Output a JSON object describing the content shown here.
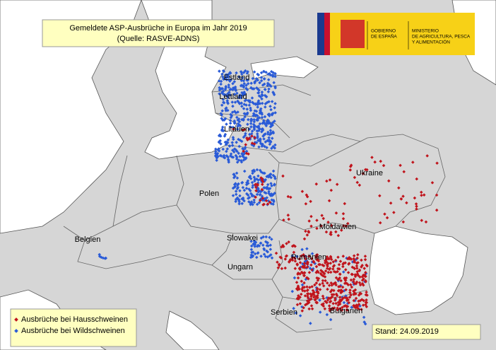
{
  "title": "Gemeldete ASP-Ausbrüche in Europa im Jahr 2019",
  "source": "(Quelle: RASVE-ADNS)",
  "logo": {
    "government": [
      "GOBIERNO",
      "DE ESPAÑA"
    ],
    "ministry": [
      "MINISTERIO",
      "DE AGRICULTURA, PESCA",
      "Y ALIMENTACIÓN"
    ]
  },
  "countries": [
    "Estland",
    "Lettland",
    "Litauen",
    "Ukraine",
    "Polen",
    "Moldawien",
    "Slowakei",
    "Belgien",
    "Rumänien",
    "Ungarn",
    "Serbien",
    "Bulgarien"
  ],
  "legend": [
    "Ausbrüche bei Hausschweinen",
    "Ausbrüche bei Wildschweinen"
  ],
  "stand": "Stand: 24.09.2019"
}
